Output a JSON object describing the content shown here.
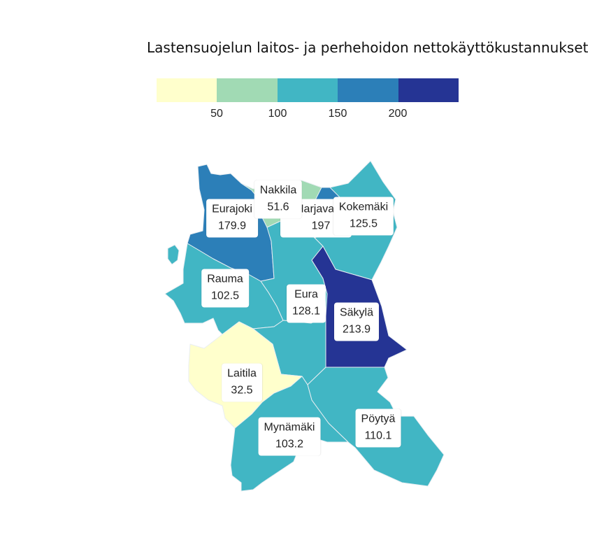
{
  "title": "Lastensuojelun laitos- ja perhehoidon nettokäyttökustannukset",
  "legend": {
    "breaks": [
      50,
      100,
      150,
      200
    ],
    "tick_labels": [
      "50",
      "100",
      "150",
      "200"
    ],
    "colors": [
      "#ffffcc",
      "#a1dab4",
      "#41b6c4",
      "#2c7fb8",
      "#253494"
    ]
  },
  "municipalities": [
    {
      "id": "eurajoki",
      "name": "Eurajoki",
      "value_label": "179.9",
      "value": 179.9
    },
    {
      "id": "nakkila",
      "name": "Nakkila",
      "value_label": "51.6",
      "value": 51.6
    },
    {
      "id": "harjavalta",
      "name": "Harjavalta",
      "value_label": "197",
      "value": 197
    },
    {
      "id": "kokemaki",
      "name": "Kokemäki",
      "value_label": "125.5",
      "value": 125.5
    },
    {
      "id": "rauma",
      "name": "Rauma",
      "value_label": "102.5",
      "value": 102.5
    },
    {
      "id": "eura",
      "name": "Eura",
      "value_label": "128.1",
      "value": 128.1
    },
    {
      "id": "sakyla",
      "name": "Säkylä",
      "value_label": "213.9",
      "value": 213.9
    },
    {
      "id": "laitila",
      "name": "Laitila",
      "value_label": "32.5",
      "value": 32.5
    },
    {
      "id": "mynamaki",
      "name": "Mynämäki",
      "value_label": "103.2",
      "value": 103.2
    },
    {
      "id": "poytya",
      "name": "Pöytyä",
      "value_label": "110.1",
      "value": 110.1
    }
  ]
}
